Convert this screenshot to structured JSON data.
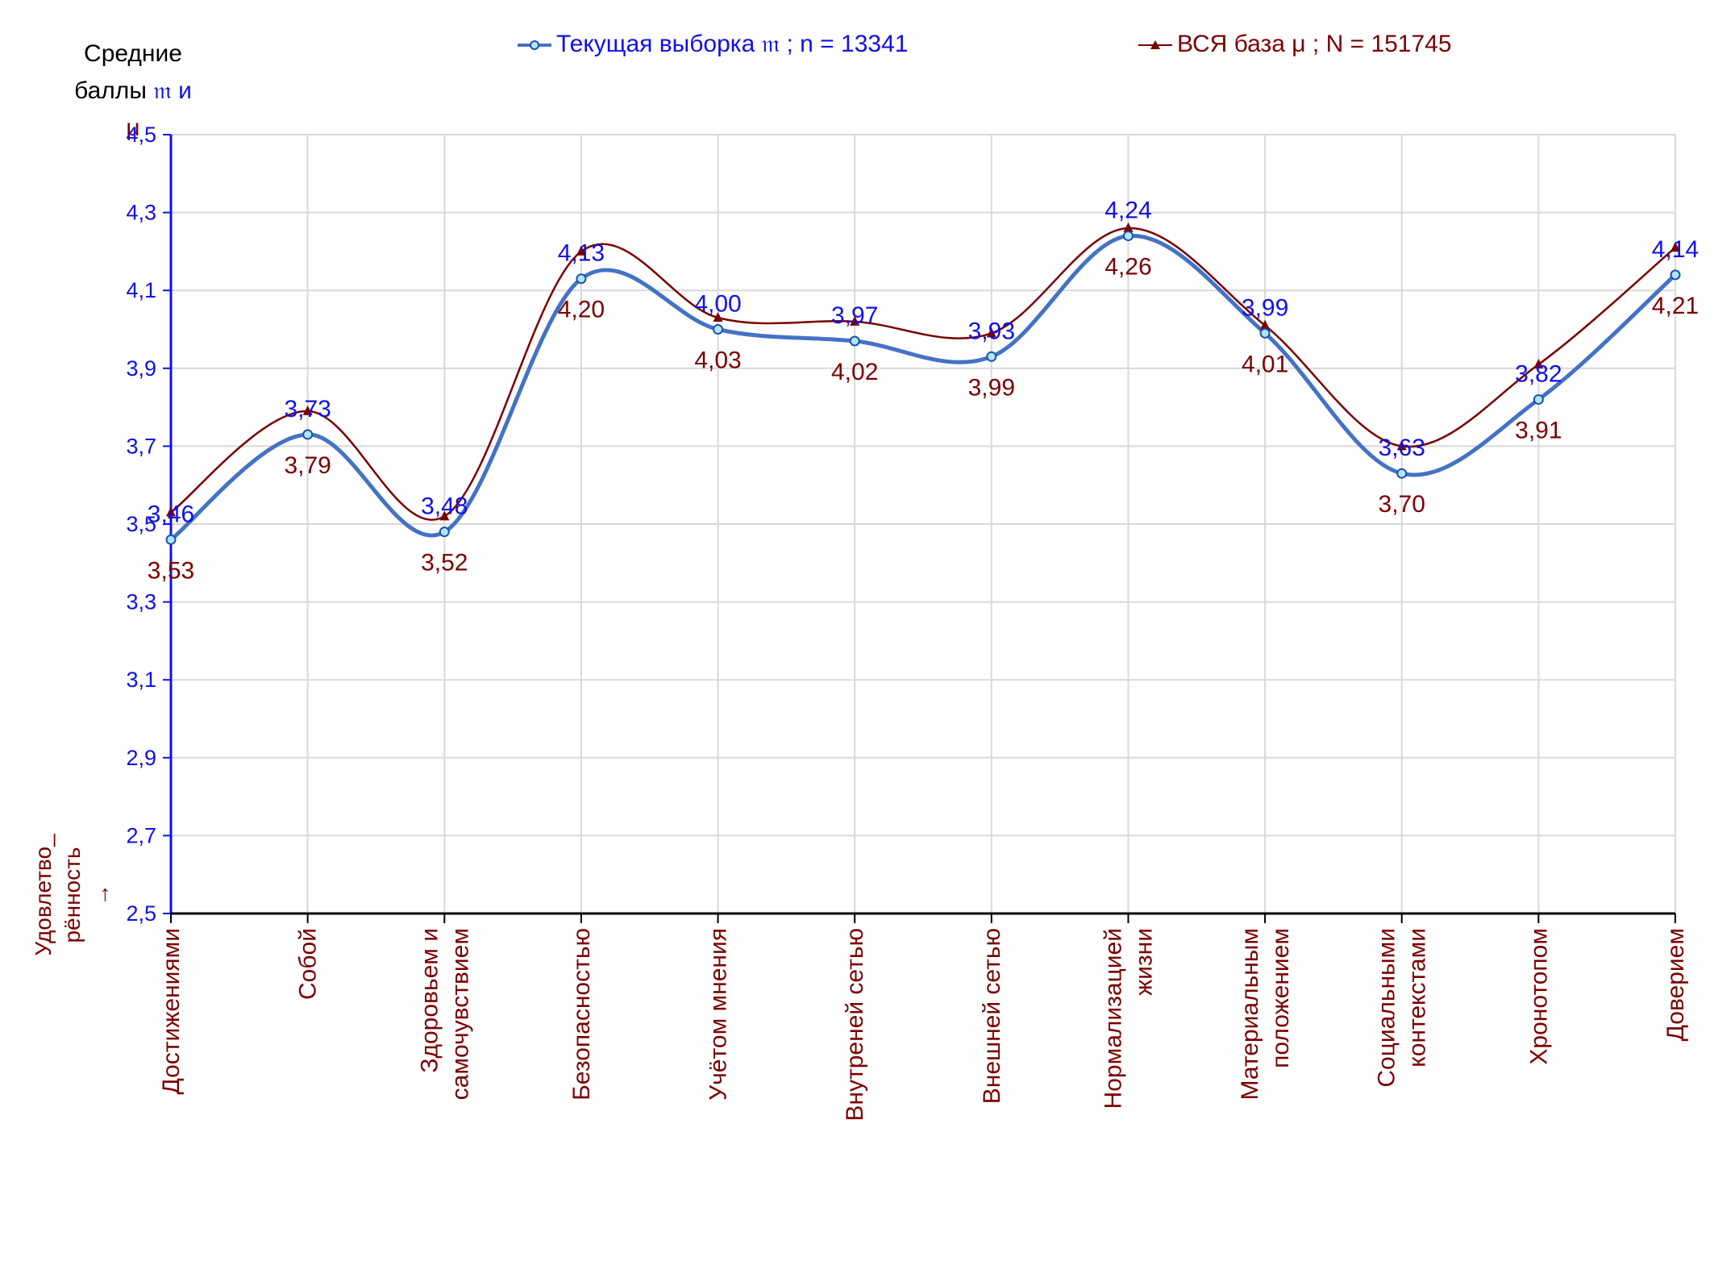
{
  "y_axis_title": {
    "line1": "Средние",
    "line2_prefix": "баллы ",
    "symbol_sample": "𝔪",
    "conj": " и ",
    "symbol_base": "μ"
  },
  "x_axis_prompt": [
    "Удовлетво_",
    "рённость",
    "→"
  ],
  "colors": {
    "sample": "#4472c4",
    "sample_text": "#1010e6",
    "base": "#7a0000",
    "grid": "#d9d9d9",
    "axis": "#1010e6"
  },
  "chart_data": {
    "type": "line",
    "ylim": [
      2.5,
      4.5
    ],
    "yticks": [
      "2,5",
      "2,7",
      "2,9",
      "3,1",
      "3,3",
      "3,5",
      "3,7",
      "3,9",
      "4,1",
      "4,3",
      "4,5"
    ],
    "categories": [
      [
        "Достижениями"
      ],
      [
        "Собой"
      ],
      [
        "Здоровьем и",
        "самочувствием"
      ],
      [
        "Безопасностью"
      ],
      [
        "Учётом мнения"
      ],
      [
        "Внутреней сетью"
      ],
      [
        "Внешней сетью"
      ],
      [
        "Нормализацией",
        "жизни"
      ],
      [
        "Материальным",
        "положением"
      ],
      [
        "Социальными",
        "контекстами"
      ],
      [
        "Хронотопом"
      ],
      [
        "Доверием"
      ]
    ],
    "grid": true,
    "legend_position": "top",
    "series": [
      {
        "name": "Текущая выборка 𝔪 ; n = 13341",
        "values": [
          3.46,
          3.73,
          3.48,
          4.13,
          4.0,
          3.97,
          3.93,
          4.24,
          3.99,
          3.63,
          3.82,
          4.14
        ],
        "labels": [
          "3,46",
          "3,73",
          "3,48",
          "4,13",
          "4,00",
          "3,97",
          "3,93",
          "4,24",
          "3,99",
          "3,63",
          "3,82",
          "4,14"
        ]
      },
      {
        "name": "ВСЯ база μ ; N = 151745",
        "values": [
          3.53,
          3.79,
          3.52,
          4.2,
          4.03,
          4.02,
          3.99,
          4.26,
          4.01,
          3.7,
          3.91,
          4.21
        ],
        "labels": [
          "3,53",
          "3,79",
          "3,52",
          "4,20",
          "4,03",
          "4,02",
          "3,99",
          "4,26",
          "4,01",
          "3,70",
          "3,91",
          "4,21"
        ]
      }
    ]
  }
}
